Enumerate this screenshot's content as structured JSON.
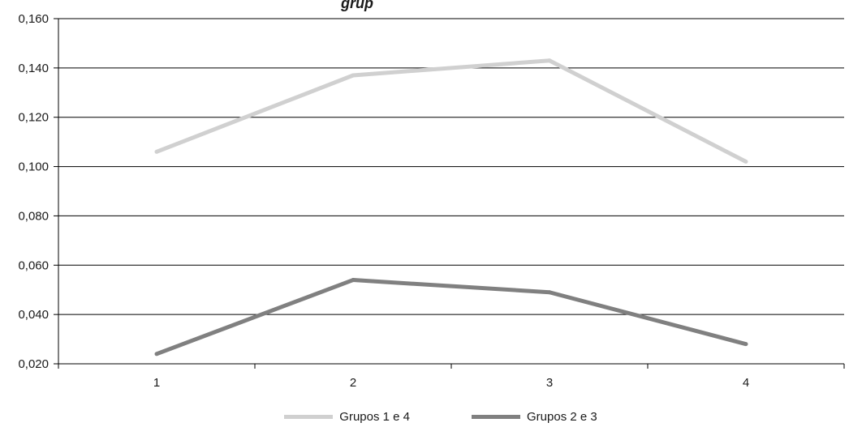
{
  "chart_data": {
    "type": "line",
    "title_fragment": "grup",
    "categories": [
      "1",
      "2",
      "3",
      "4"
    ],
    "ylim": [
      0.02,
      0.16
    ],
    "yticks": [
      "0,020",
      "0,040",
      "0,060",
      "0,080",
      "0,100",
      "0,120",
      "0,140",
      "0,160"
    ],
    "grid": true,
    "legend_position": "bottom",
    "series": [
      {
        "name": "Grupos 1 e 4",
        "values": [
          0.106,
          0.137,
          0.143,
          0.102
        ],
        "color": "#d0d0d0"
      },
      {
        "name": "Grupos 2 e 3",
        "values": [
          0.024,
          0.054,
          0.049,
          0.028
        ],
        "color": "#808080"
      }
    ]
  }
}
